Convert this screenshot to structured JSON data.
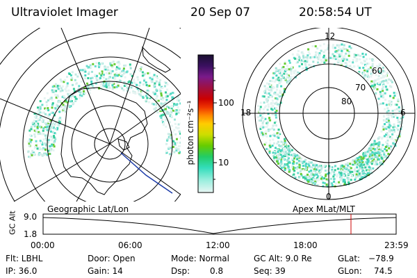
{
  "header": {
    "instrument": "Ultraviolet Imager",
    "date": "20 Sep 07",
    "time": "20:58:54 UT"
  },
  "geo_panel": {
    "label": "Geographic Lat/Lon"
  },
  "apex_panel": {
    "label": "Apex MLat/MLT",
    "mlt_labels": [
      "12",
      "18",
      "6",
      "0"
    ],
    "lat_labels": [
      "60",
      "70",
      "80"
    ]
  },
  "colorbar": {
    "unit_label": "photon cm⁻²s⁻¹",
    "tick_labels": [
      "100",
      "10"
    ],
    "colors": [
      "#1a1030",
      "#3a1060",
      "#7a1a8a",
      "#a01040",
      "#cc0000",
      "#ee3300",
      "#ff8800",
      "#ffcc00",
      "#ccdd00",
      "#66cc00",
      "#22cc66",
      "#33ddbb",
      "#99eedd",
      "#e8f6f4"
    ]
  },
  "altitude_plot": {
    "ylabel": "GC Alt",
    "y_ticks": [
      "9.0",
      "1.8"
    ],
    "x_ticks": [
      "00:00",
      "06:00",
      "12:00",
      "18:00",
      "23:59"
    ],
    "current_time_color": "#cc0000"
  },
  "info": {
    "flt": "Flt: LBHL",
    "ip": "IP: 36.0",
    "door": "Door: Open",
    "gain": "Gain: 14",
    "mode": "Mode: Normal",
    "dsp_label": "Dsp:",
    "dsp_value": "0.8",
    "gc_alt": "GC Alt: 9.0 Re",
    "seq": "Seq: 39",
    "glat_label": "GLat:",
    "glat_value": "−78.9",
    "glon_label": "GLon:",
    "glon_value": "74.5"
  }
}
